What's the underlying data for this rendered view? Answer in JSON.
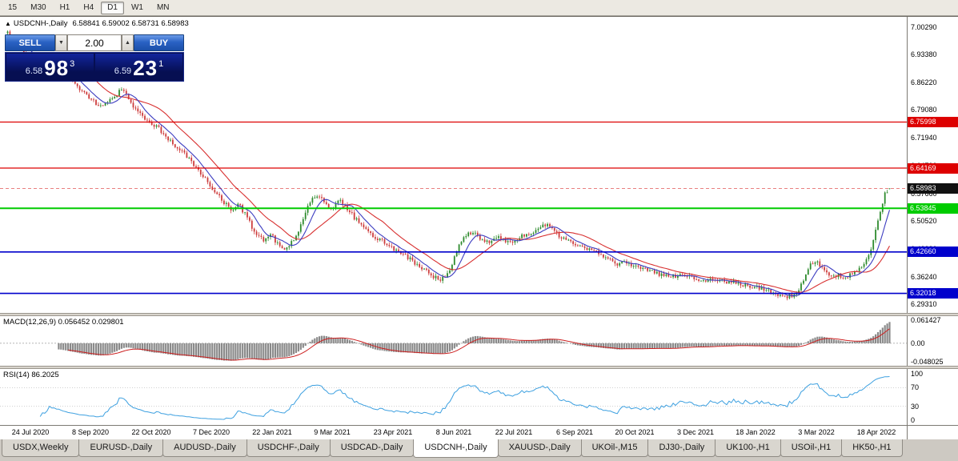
{
  "toolbar": {
    "timeframes": [
      "15",
      "M30",
      "H1",
      "H4",
      "D1",
      "W1",
      "MN"
    ],
    "active": "D1"
  },
  "window": {
    "header": {
      "collapse_icon": "▲",
      "symbol_label": "USDCNH-,Daily",
      "ohlc": "6.58841 6.59002 6.58731 6.58983"
    },
    "trade_panel": {
      "sell_label": "SELL",
      "buy_label": "BUY",
      "volume": "2.00",
      "down_arrow": "▼",
      "up_arrow": "▲",
      "sell_price": {
        "small": "6.58",
        "big": "98",
        "sup": "3"
      },
      "buy_price": {
        "small": "6.59",
        "big": "23",
        "sup": "1"
      }
    }
  },
  "chart_data": {
    "type": "candlestick",
    "symbol": "USDCNH-",
    "timeframe": "Daily",
    "title": "USDCNH-,Daily",
    "current_bar": {
      "open": 6.58841,
      "high": 6.59002,
      "low": 6.58731,
      "close": 6.58983
    },
    "bid": {
      "value": 6.58983,
      "label": "6.58983"
    },
    "price_range": {
      "max": 7.03,
      "min": 6.27
    },
    "price_axis_labels": [
      "7.00290",
      "6.93380",
      "6.86220",
      "6.79080",
      "6.71940",
      "6.64790",
      "6.57660",
      "6.50520",
      "6.43380",
      "6.36240",
      "6.29310"
    ],
    "hlines": [
      {
        "value": 6.75998,
        "label": "6.75998",
        "color": "#dd0000",
        "width": 1.3
      },
      {
        "value": 6.64169,
        "label": "6.64169",
        "color": "#dd0000",
        "width": 1.3
      },
      {
        "value": 6.53845,
        "label": "6.53845",
        "color": "#00cc00",
        "width": 2
      },
      {
        "value": 6.4266,
        "label": "6.42660",
        "color": "#0000cc",
        "width": 1.6
      },
      {
        "value": 6.32018,
        "label": "6.32018",
        "color": "#0000cc",
        "width": 1.6
      }
    ],
    "date_labels": [
      "24 Jul 2020",
      "8 Sep 2020",
      "22 Oct 2020",
      "7 Dec 2020",
      "22 Jan 2021",
      "9 Mar 2021",
      "23 Apr 2021",
      "8 Jun 2021",
      "22 Jul 2021",
      "6 Sep 2021",
      "20 Oct 2021",
      "3 Dec 2021",
      "18 Jan 2022",
      "3 Mar 2022",
      "18 Apr 2022"
    ],
    "candle_count": 380,
    "price_path": [
      [
        0.0,
        6.988
      ],
      [
        0.01,
        6.958
      ],
      [
        0.022,
        6.93
      ],
      [
        0.035,
        6.906
      ],
      [
        0.048,
        6.928
      ],
      [
        0.062,
        6.894
      ],
      [
        0.076,
        6.856
      ],
      [
        0.09,
        6.826
      ],
      [
        0.104,
        6.8
      ],
      [
        0.118,
        6.816
      ],
      [
        0.13,
        6.846
      ],
      [
        0.143,
        6.8
      ],
      [
        0.156,
        6.765
      ],
      [
        0.17,
        6.746
      ],
      [
        0.183,
        6.712
      ],
      [
        0.196,
        6.688
      ],
      [
        0.209,
        6.655
      ],
      [
        0.222,
        6.62
      ],
      [
        0.234,
        6.585
      ],
      [
        0.245,
        6.555
      ],
      [
        0.254,
        6.535
      ],
      [
        0.262,
        6.548
      ],
      [
        0.27,
        6.52
      ],
      [
        0.28,
        6.478
      ],
      [
        0.29,
        6.455
      ],
      [
        0.298,
        6.472
      ],
      [
        0.306,
        6.448
      ],
      [
        0.314,
        6.432
      ],
      [
        0.321,
        6.446
      ],
      [
        0.329,
        6.478
      ],
      [
        0.337,
        6.525
      ],
      [
        0.345,
        6.562
      ],
      [
        0.352,
        6.576
      ],
      [
        0.36,
        6.55
      ],
      [
        0.368,
        6.538
      ],
      [
        0.376,
        6.558
      ],
      [
        0.384,
        6.542
      ],
      [
        0.393,
        6.515
      ],
      [
        0.403,
        6.492
      ],
      [
        0.414,
        6.47
      ],
      [
        0.426,
        6.452
      ],
      [
        0.438,
        6.435
      ],
      [
        0.45,
        6.42
      ],
      [
        0.461,
        6.4
      ],
      [
        0.472,
        6.382
      ],
      [
        0.483,
        6.362
      ],
      [
        0.492,
        6.356
      ],
      [
        0.5,
        6.375
      ],
      [
        0.509,
        6.428
      ],
      [
        0.518,
        6.468
      ],
      [
        0.527,
        6.478
      ],
      [
        0.537,
        6.46
      ],
      [
        0.548,
        6.452
      ],
      [
        0.558,
        6.466
      ],
      [
        0.568,
        6.45
      ],
      [
        0.579,
        6.462
      ],
      [
        0.59,
        6.474
      ],
      [
        0.601,
        6.484
      ],
      [
        0.611,
        6.497
      ],
      [
        0.62,
        6.48
      ],
      [
        0.631,
        6.458
      ],
      [
        0.642,
        6.45
      ],
      [
        0.654,
        6.44
      ],
      [
        0.666,
        6.428
      ],
      [
        0.678,
        6.412
      ],
      [
        0.69,
        6.396
      ],
      [
        0.702,
        6.4
      ],
      [
        0.714,
        6.386
      ],
      [
        0.726,
        6.378
      ],
      [
        0.739,
        6.37
      ],
      [
        0.752,
        6.362
      ],
      [
        0.764,
        6.368
      ],
      [
        0.776,
        6.358
      ],
      [
        0.788,
        6.354
      ],
      [
        0.8,
        6.36
      ],
      [
        0.812,
        6.35
      ],
      [
        0.824,
        6.35
      ],
      [
        0.836,
        6.342
      ],
      [
        0.848,
        6.336
      ],
      [
        0.86,
        6.33
      ],
      [
        0.872,
        6.32
      ],
      [
        0.884,
        6.312
      ],
      [
        0.893,
        6.316
      ],
      [
        0.901,
        6.35
      ],
      [
        0.909,
        6.39
      ],
      [
        0.917,
        6.401
      ],
      [
        0.925,
        6.378
      ],
      [
        0.933,
        6.36
      ],
      [
        0.941,
        6.367
      ],
      [
        0.949,
        6.361
      ],
      [
        0.957,
        6.371
      ],
      [
        0.965,
        6.38
      ],
      [
        0.971,
        6.393
      ],
      [
        0.977,
        6.424
      ],
      [
        0.983,
        6.468
      ],
      [
        0.989,
        6.528
      ],
      [
        0.995,
        6.576
      ],
      [
        1.0,
        6.589
      ]
    ],
    "indicators": {
      "macd": {
        "label": "MACD(12,26,9)",
        "values_text": "0.056452 0.029801",
        "axis_labels": [
          "0.061427",
          "0.00",
          "-0.048025"
        ],
        "axis_values": [
          0.061427,
          0,
          -0.048025
        ],
        "range": {
          "max": 0.07,
          "min": -0.058
        },
        "fast": 12,
        "slow": 26,
        "signal": 9
      },
      "rsi": {
        "label": "RSI(14)",
        "value_text": "86.2025",
        "axis_labels": [
          "100",
          "70",
          "30",
          "0"
        ],
        "axis_values": [
          100,
          70,
          30,
          0
        ],
        "range": {
          "max": 110,
          "min": -10
        },
        "levels": [
          70,
          30
        ],
        "period": 14
      }
    }
  },
  "tabs": {
    "active_index": 5,
    "items": [
      "USDX,Weekly",
      "EURUSD-,Daily",
      "AUDUSD-,Daily",
      "USDCHF-,Daily",
      "USDCAD-,Daily",
      "USDCNH-,Daily",
      "XAUUSD-,Daily",
      "UKOil-,M15",
      "DJ30-,Daily",
      "UK100-,H1",
      "USOil-,H1",
      "HK50-,H1"
    ]
  },
  "colors": {
    "bull": "#2e8b2e",
    "bear": "#cd3c3c",
    "ma_fast": "#3c3cc0",
    "ma_slow": "#d83030",
    "macd_hist": "#8a8a8a",
    "macd_signal": "#cc2020",
    "rsi_line": "#3da0e0",
    "bid_line": "#d40000",
    "bid_box": "#111111"
  }
}
